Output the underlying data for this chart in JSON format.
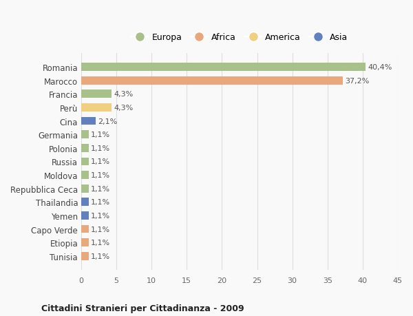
{
  "countries": [
    "Romania",
    "Marocco",
    "Francia",
    "Perù",
    "Cina",
    "Germania",
    "Polonia",
    "Russia",
    "Moldova",
    "Repubblica Ceca",
    "Thailandia",
    "Yemen",
    "Capo Verde",
    "Etiopia",
    "Tunisia"
  ],
  "values": [
    40.4,
    37.2,
    4.3,
    4.3,
    2.1,
    1.1,
    1.1,
    1.1,
    1.1,
    1.1,
    1.1,
    1.1,
    1.1,
    1.1,
    1.1
  ],
  "labels": [
    "40,4%",
    "37,2%",
    "4,3%",
    "4,3%",
    "2,1%",
    "1,1%",
    "1,1%",
    "1,1%",
    "1,1%",
    "1,1%",
    "1,1%",
    "1,1%",
    "1,1%",
    "1,1%",
    "1,1%"
  ],
  "continents": [
    "Europa",
    "Africa",
    "Europa",
    "America",
    "Asia",
    "Europa",
    "Europa",
    "Europa",
    "Europa",
    "Europa",
    "Asia",
    "Asia",
    "Africa",
    "Africa",
    "Africa"
  ],
  "colors": {
    "Europa": "#a8c08a",
    "Africa": "#e8a87c",
    "America": "#f0d080",
    "Asia": "#6080c0"
  },
  "legend_order": [
    "Europa",
    "Africa",
    "America",
    "Asia"
  ],
  "title": "Cittadini Stranieri per Cittadinanza - 2009",
  "xlim": [
    0,
    45
  ],
  "xticks": [
    0,
    5,
    10,
    15,
    20,
    25,
    30,
    35,
    40,
    45
  ],
  "background_color": "#f9f9f9",
  "grid_color": "#dddddd"
}
